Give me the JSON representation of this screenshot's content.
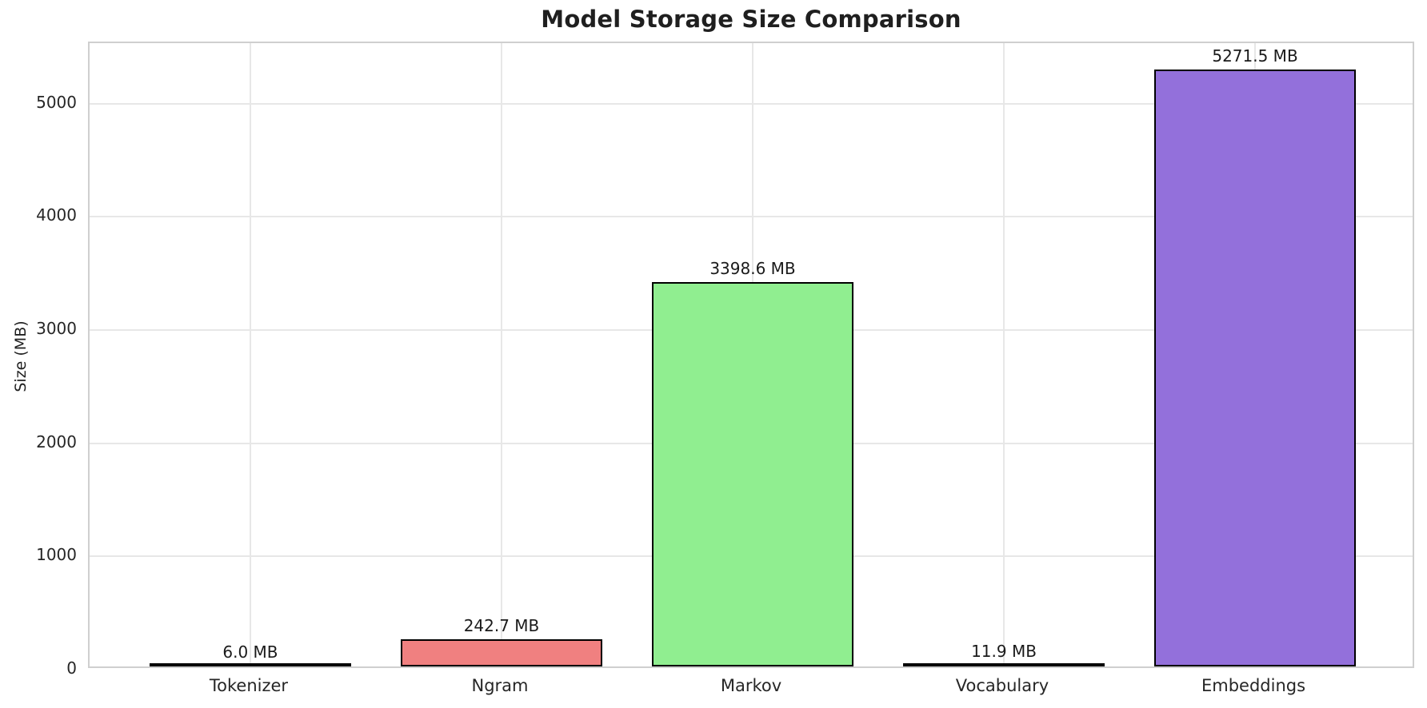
{
  "chart_data": {
    "type": "bar",
    "title": "Model Storage Size Comparison",
    "ylabel": "Size (MB)",
    "categories": [
      "Tokenizer",
      "Ngram",
      "Markov",
      "Vocabulary",
      "Embeddings"
    ],
    "values": [
      6.0,
      242.7,
      3398.6,
      11.9,
      5271.5
    ],
    "bar_labels": [
      "6.0 MB",
      "242.7 MB",
      "3398.6 MB",
      "11.9 MB",
      "5271.5 MB"
    ],
    "bar_colors": [
      "#87CEEB",
      "#F08080",
      "#90EE90",
      "#FFD700",
      "#9370DB"
    ],
    "bar_edge_color": "#000000",
    "y_ticks": [
      0,
      1000,
      2000,
      3000,
      4000,
      5000
    ],
    "ylim": [
      0,
      5535
    ],
    "grid": true,
    "grid_color": "#e7e7e7",
    "spine_color": "#cfcfcf",
    "background": "#ffffff",
    "legend": "none"
  }
}
